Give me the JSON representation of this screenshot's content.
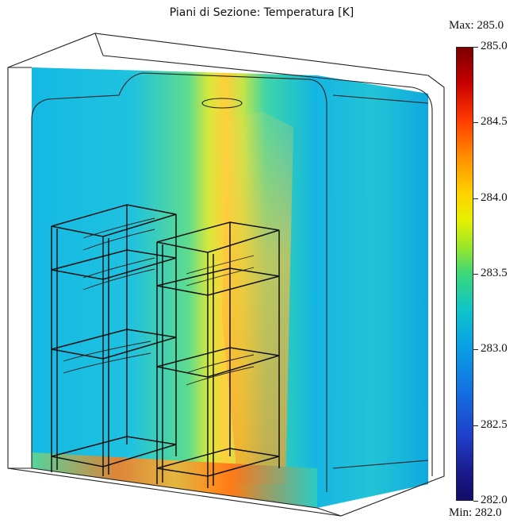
{
  "title": "Piani di Sezione: Temperatura [K]",
  "colorbar": {
    "max_label": "Max: 285.0",
    "min_label": "Min: 282.0",
    "ticks": [
      "285.0",
      "284.5",
      "284.0",
      "283.5",
      "283.0",
      "282.5",
      "282.0"
    ],
    "tick_values": [
      285.0,
      284.5,
      284.0,
      283.5,
      283.0,
      282.5,
      282.0
    ],
    "range": [
      282.0,
      285.0
    ],
    "colormap": [
      "#7a0000",
      "#ff3a00",
      "#ffd000",
      "#3bd77a",
      "#10c4c8",
      "#1470e0",
      "#120d6a"
    ]
  },
  "colors": {
    "cold": "#12b9e6",
    "mid": "#3fd6a0",
    "warm": "#ffd54a",
    "hot": "#ff8a1e",
    "wire": "#1a1a1a"
  }
}
